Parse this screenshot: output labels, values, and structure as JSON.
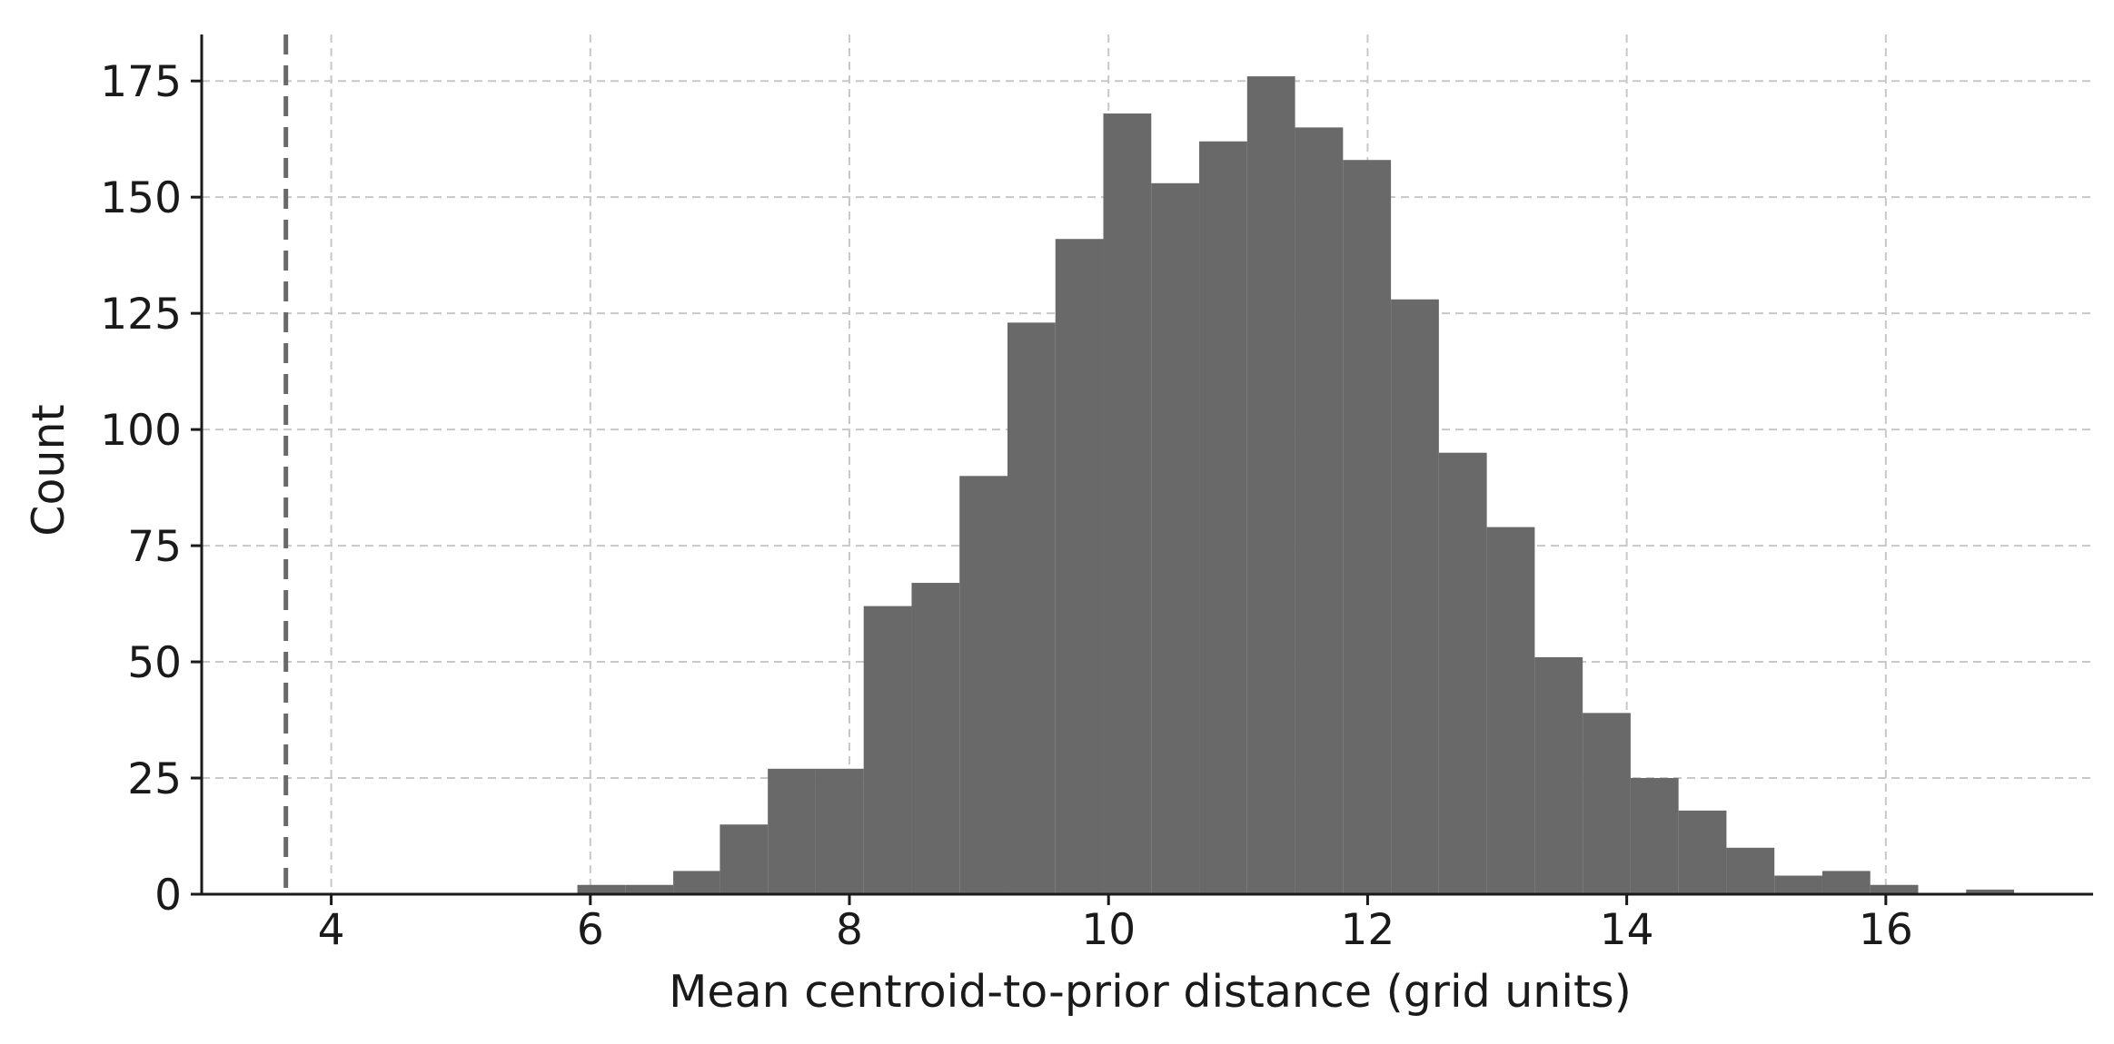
{
  "chart_data": {
    "type": "bar",
    "title": "",
    "xlabel": "Mean centroid-to-prior distance (grid units)",
    "ylabel": "Count",
    "xlim": [
      3.0,
      17.6
    ],
    "ylim": [
      0,
      185
    ],
    "xticks": [
      4,
      6,
      8,
      10,
      12,
      14,
      16
    ],
    "yticks": [
      0,
      25,
      50,
      75,
      100,
      125,
      150,
      175
    ],
    "grid": true,
    "bar_color": "#696969",
    "reference_line": {
      "x": 3.65,
      "style": "dashed",
      "color": "#696969"
    },
    "bins": [
      {
        "x0": 5.9,
        "x1": 6.27,
        "value": 2
      },
      {
        "x0": 6.27,
        "x1": 6.64,
        "value": 2
      },
      {
        "x0": 6.64,
        "x1": 7.0,
        "value": 5
      },
      {
        "x0": 7.0,
        "x1": 7.37,
        "value": 15
      },
      {
        "x0": 7.37,
        "x1": 7.74,
        "value": 27
      },
      {
        "x0": 7.74,
        "x1": 8.11,
        "value": 27
      },
      {
        "x0": 8.11,
        "x1": 8.48,
        "value": 62
      },
      {
        "x0": 8.48,
        "x1": 8.85,
        "value": 67
      },
      {
        "x0": 8.85,
        "x1": 9.22,
        "value": 90
      },
      {
        "x0": 9.22,
        "x1": 9.59,
        "value": 123
      },
      {
        "x0": 9.59,
        "x1": 9.96,
        "value": 141
      },
      {
        "x0": 9.96,
        "x1": 10.33,
        "value": 168
      },
      {
        "x0": 10.33,
        "x1": 10.7,
        "value": 153
      },
      {
        "x0": 10.7,
        "x1": 11.07,
        "value": 162
      },
      {
        "x0": 11.07,
        "x1": 11.44,
        "value": 176
      },
      {
        "x0": 11.44,
        "x1": 11.81,
        "value": 165
      },
      {
        "x0": 11.81,
        "x1": 12.18,
        "value": 158
      },
      {
        "x0": 12.18,
        "x1": 12.55,
        "value": 128
      },
      {
        "x0": 12.55,
        "x1": 12.92,
        "value": 95
      },
      {
        "x0": 12.92,
        "x1": 13.29,
        "value": 79
      },
      {
        "x0": 13.29,
        "x1": 13.66,
        "value": 51
      },
      {
        "x0": 13.66,
        "x1": 14.03,
        "value": 39
      },
      {
        "x0": 14.03,
        "x1": 14.4,
        "value": 25
      },
      {
        "x0": 14.4,
        "x1": 14.77,
        "value": 18
      },
      {
        "x0": 14.77,
        "x1": 15.14,
        "value": 10
      },
      {
        "x0": 15.14,
        "x1": 15.51,
        "value": 4
      },
      {
        "x0": 15.51,
        "x1": 15.88,
        "value": 5
      },
      {
        "x0": 15.88,
        "x1": 16.25,
        "value": 2
      },
      {
        "x0": 16.25,
        "x1": 16.62,
        "value": 0
      },
      {
        "x0": 16.62,
        "x1": 16.99,
        "value": 1
      }
    ]
  }
}
